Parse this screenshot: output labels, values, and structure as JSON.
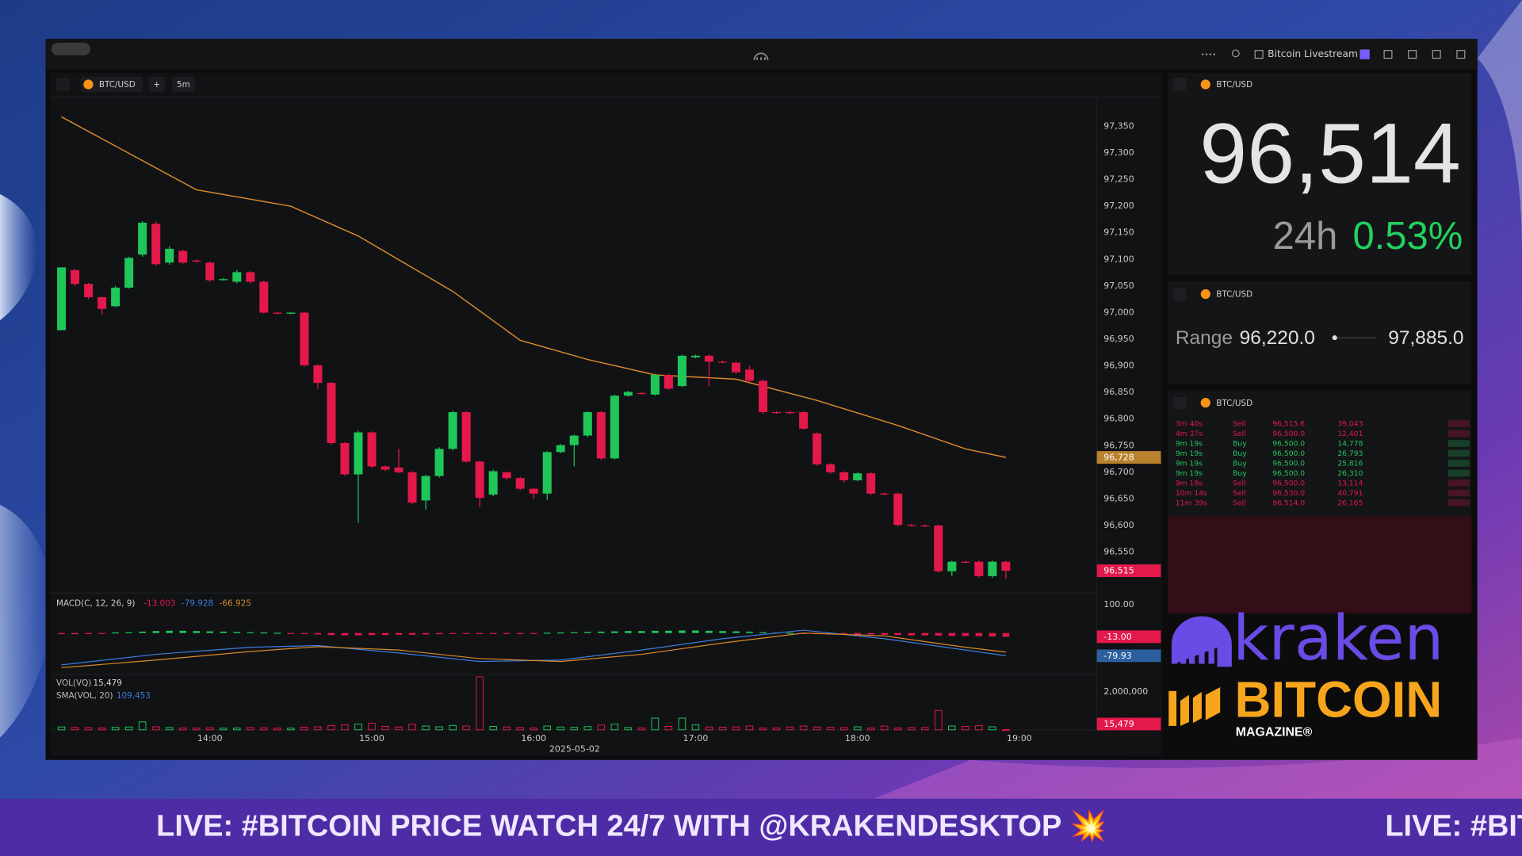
{
  "window": {
    "title": "Bitcoin Livestream"
  },
  "toolbar": {
    "symbol": "BTC/USD",
    "add": "+",
    "interval": "5m"
  },
  "chart_data": [
    {
      "type": "candlestick",
      "x": [
        785,
        790,
        795,
        800,
        805,
        810,
        815,
        820,
        825,
        830,
        835,
        840,
        845,
        850,
        855,
        860,
        865,
        870,
        875,
        880,
        885,
        890,
        895,
        900,
        905,
        910,
        915,
        920,
        925,
        930,
        935,
        940,
        945,
        950,
        955,
        960,
        965,
        970,
        975,
        980,
        985,
        990,
        995,
        1000,
        1005,
        1010,
        1015,
        1020,
        1025,
        1030,
        1035,
        1040,
        1045,
        1050,
        1055,
        1060,
        1065,
        1070,
        1075,
        1080,
        1085,
        1090,
        1095,
        1100,
        1105,
        1110,
        1115,
        1120,
        1125,
        1130,
        1135
      ],
      "open": [
        96967,
        97080,
        97054,
        97029,
        97012,
        97047,
        97109,
        97167,
        97094,
        97116,
        97098,
        97094,
        97061,
        97058,
        97076,
        97058,
        97000,
        96998,
        97000,
        96901,
        96868,
        96755,
        96696,
        96775,
        96711,
        96709,
        96700,
        96647,
        96693,
        96744,
        96813,
        96720,
        96658,
        96700,
        96689,
        96669,
        96660,
        96738,
        96751,
        96769,
        96813,
        96726,
        96844,
        96849,
        96846,
        96883,
        96862,
        96916,
        96919,
        96908,
        96906,
        96893,
        96872,
        96813,
        96813,
        96813,
        96773,
        96715,
        96700,
        96685,
        96698,
        96660,
        96660,
        96601,
        96600,
        96600,
        96514,
        96532,
        96532,
        96505,
        96532
      ],
      "high": [
        97085,
        97082,
        97056,
        97030,
        97050,
        97105,
        97172,
        97172,
        97125,
        97118,
        97100,
        97096,
        97065,
        97080,
        97078,
        97060,
        97001,
        97001,
        97002,
        96903,
        96870,
        96757,
        96778,
        96777,
        96713,
        96744,
        96702,
        96695,
        96747,
        96816,
        96815,
        96722,
        96705,
        96702,
        96691,
        96671,
        96740,
        96753,
        96771,
        96815,
        96815,
        96846,
        96853,
        96851,
        96885,
        96885,
        96921,
        96921,
        96921,
        96910,
        96908,
        96900,
        96874,
        96815,
        96815,
        96815,
        96775,
        96717,
        96702,
        96700,
        96700,
        96662,
        96662,
        96603,
        96602,
        96602,
        96534,
        96534,
        96534,
        96534,
        96534
      ],
      "low": [
        96967,
        97050,
        97025,
        96996,
        97010,
        97045,
        97105,
        97088,
        97090,
        97092,
        97094,
        97058,
        97060,
        97055,
        97055,
        96998,
        96997,
        96997,
        96898,
        96857,
        96752,
        96693,
        96605,
        96708,
        96702,
        96698,
        96640,
        96630,
        96690,
        96741,
        96718,
        96634,
        96655,
        96686,
        96666,
        96650,
        96648,
        96736,
        96711,
        96766,
        96723,
        96724,
        96842,
        96846,
        96844,
        96855,
        96860,
        96914,
        96861,
        96905,
        96885,
        96870,
        96810,
        96810,
        96809,
        96780,
        96712,
        96697,
        96680,
        96683,
        96657,
        96657,
        96598,
        96598,
        96597,
        96511,
        96505,
        96529,
        96502,
        96502,
        96499
      ],
      "close": [
        97085,
        97054,
        97029,
        97007,
        97047,
        97103,
        97169,
        97091,
        97120,
        97094,
        97096,
        97061,
        97063,
        97076,
        97058,
        97000,
        96998,
        97000,
        96901,
        96868,
        96755,
        96696,
        96775,
        96711,
        96705,
        96700,
        96643,
        96693,
        96744,
        96813,
        96720,
        96652,
        96702,
        96689,
        96669,
        96660,
        96738,
        96751,
        96769,
        96813,
        96726,
        96844,
        96851,
        96848,
        96883,
        96857,
        96919,
        96919,
        96908,
        96907,
        96888,
        96872,
        96813,
        96812,
        96811,
        96782,
        96715,
        96700,
        96685,
        96698,
        96660,
        96659,
        96601,
        96600,
        96599,
        96514,
        96532,
        96531,
        96505,
        96532,
        96515
      ],
      "up_color": "#1fc65a",
      "down_color": "#e3184b",
      "xlim": [
        782,
        1168
      ],
      "xticks": [
        {
          "value": 840,
          "label": "14:00"
        },
        {
          "value": 900,
          "label": "15:00"
        },
        {
          "value": 960,
          "label": "16:00"
        },
        {
          "value": 1020,
          "label": "17:00"
        },
        {
          "value": 1080,
          "label": "18:00"
        },
        {
          "value": 1140,
          "label": "19:00"
        }
      ],
      "date": "2025-05-02",
      "ylim": [
        96475,
        97396
      ],
      "yticks": [
        {
          "value": 97350,
          "label": "97,350"
        },
        {
          "value": 97300,
          "label": "97,300"
        },
        {
          "value": 97250,
          "label": "97,250"
        },
        {
          "value": 97200,
          "label": "97,200"
        },
        {
          "value": 97150,
          "label": "97,150"
        },
        {
          "value": 97100,
          "label": "97,100"
        },
        {
          "value": 97050,
          "label": "97,050"
        },
        {
          "value": 97000,
          "label": "97,000"
        },
        {
          "value": 96950,
          "label": "96,950"
        },
        {
          "value": 96900,
          "label": "96,900"
        },
        {
          "value": 96850,
          "label": "96,850"
        },
        {
          "value": 96800,
          "label": "96,800"
        },
        {
          "value": 96750,
          "label": "96,750"
        },
        {
          "value": 96700,
          "label": "96,700"
        },
        {
          "value": 96650,
          "label": "96,650"
        },
        {
          "value": 96600,
          "label": "96,600"
        },
        {
          "value": 96550,
          "label": "96,550"
        }
      ],
      "grid": false,
      "ma": {
        "color": "#d98a2b",
        "x": [
          785,
          835,
          870,
          895,
          930,
          955,
          980,
          1005,
          1035,
          1065,
          1095,
          1120,
          1135
        ],
        "values": [
          97368,
          97231,
          97200,
          97144,
          97040,
          96948,
          96912,
          96883,
          96875,
          96835,
          96788,
          96744,
          96728
        ]
      },
      "markers": [
        {
          "value": 96728,
          "label": "96,728",
          "color": "#b9822e"
        },
        {
          "value": 96515,
          "label": "96,515",
          "color": "#e3184b"
        }
      ]
    },
    {
      "type": "macd",
      "title": "MACD(C, 12, 26, 9)",
      "legend": [
        {
          "value": -13.003,
          "color": "#e3184b"
        },
        {
          "value": -79.928,
          "color": "#3b7ddd"
        },
        {
          "value": -66.925,
          "color": "#d98a2b"
        }
      ],
      "ylim": [
        -139,
        134
      ],
      "yticks": [
        {
          "value": 100,
          "label": "100.00"
        }
      ],
      "histogram": [
        -4,
        -4,
        -3,
        -2,
        2,
        3,
        5,
        7,
        8,
        8,
        7,
        6,
        5,
        4,
        3,
        2,
        1,
        -1,
        -3,
        -5,
        -7,
        -8,
        -8,
        -7,
        -7,
        -6,
        -6,
        -5,
        -4,
        -3,
        -2,
        -2,
        -1,
        -1,
        -1,
        -1,
        1,
        2,
        3,
        4,
        5,
        6,
        7,
        7,
        8,
        8,
        9,
        9,
        8,
        7,
        6,
        5,
        3,
        2,
        1,
        -1,
        -2,
        -3,
        -4,
        -5,
        -5,
        -6,
        -7,
        -8,
        -8,
        -9,
        -10,
        -10,
        -11,
        -12,
        -13.003
      ],
      "lines": [
        {
          "color": "#3b7ddd",
          "x": [
            785,
            820,
            855,
            880,
            910,
            940,
            970,
            1000,
            1030,
            1060,
            1090,
            1120,
            1135
          ],
          "values": [
            -112,
            -75,
            -50,
            -44,
            -70,
            -100,
            -95,
            -60,
            -20,
            10,
            -20,
            -60,
            -79.928
          ]
        },
        {
          "color": "#d98a2b",
          "x": [
            785,
            820,
            855,
            880,
            910,
            940,
            970,
            1000,
            1030,
            1060,
            1090,
            1120,
            1135
          ],
          "values": [
            -122,
            -95,
            -65,
            -48,
            -60,
            -90,
            -100,
            -75,
            -35,
            0,
            -10,
            -50,
            -66.925
          ]
        }
      ],
      "markers": [
        {
          "value": -13,
          "label": "-13.00",
          "color": "#e3184b"
        },
        {
          "value": -79.93,
          "label": "-79.93",
          "color": "#2b5f9e"
        }
      ]
    },
    {
      "type": "volume",
      "legend": [
        {
          "name": "VOL(VQ)",
          "value": {
            "value": 15479,
            "label": "15,479"
          },
          "color": "#d8d8d8"
        },
        {
          "name": "SMA(VOL, 20)",
          "value": {
            "value": 109453,
            "label": "109,453"
          },
          "color": "#3b7ddd"
        }
      ],
      "ylim": [
        0,
        2820000
      ],
      "yticks": [
        {
          "value": 2000000,
          "label": "2,000,000"
        }
      ],
      "values": [
        150000,
        120000,
        120000,
        100000,
        130000,
        150000,
        420000,
        160000,
        120000,
        100000,
        90000,
        110000,
        90000,
        100000,
        120000,
        110000,
        90000,
        90000,
        140000,
        160000,
        220000,
        260000,
        300000,
        350000,
        180000,
        150000,
        300000,
        200000,
        160000,
        230000,
        200000,
        2800000,
        180000,
        150000,
        120000,
        100000,
        200000,
        150000,
        130000,
        170000,
        250000,
        300000,
        120000,
        100000,
        620000,
        180000,
        620000,
        260000,
        150000,
        140000,
        160000,
        200000,
        100000,
        100000,
        150000,
        200000,
        150000,
        130000,
        120000,
        160000,
        100000,
        200000,
        100000,
        120000,
        120000,
        1030000,
        200000,
        180000,
        220000,
        160000,
        15479
      ],
      "markers": [
        {
          "value": 15479,
          "label": "15,479",
          "color": "#e3184b"
        }
      ]
    }
  ],
  "ticker": {
    "symbol": "BTC/USD",
    "price": "96,514",
    "period": "24h",
    "change": "0.53%"
  },
  "range": {
    "symbol": "BTC/USD",
    "label": "Range",
    "low": "96,220.0",
    "high": "97,885.0"
  },
  "trades": {
    "symbol": "BTC/USD",
    "rows": [
      [
        "3m 40s",
        "Sell",
        "96,515.6",
        "39,043"
      ],
      [
        "4m 37s",
        "Sell",
        "96,500.0",
        "12,401"
      ],
      [
        "9m 19s",
        "Buy",
        "96,500.0",
        "14,778"
      ],
      [
        "9m 19s",
        "Buy",
        "96,500.0",
        "26,793"
      ],
      [
        "9m 19s",
        "Buy",
        "96,500.0",
        "25,816"
      ],
      [
        "9m 19s",
        "Buy",
        "96,500.0",
        "26,310"
      ],
      [
        "9m 19s",
        "Sell",
        "96,500.0",
        "13,114"
      ],
      [
        "10m 14s",
        "Sell",
        "96,530.0",
        "40,791"
      ],
      [
        "11m 39s",
        "Sell",
        "96,514.0",
        "26,165"
      ]
    ]
  },
  "overlay": {
    "brand": "kraken",
    "logo": "BITCOIN",
    "logo_sub": "MAGAZINE®",
    "banner": "LIVE: #BITCOIN PRICE WATCH 24/7 WITH @KRAKENDESKTOP 💥"
  }
}
